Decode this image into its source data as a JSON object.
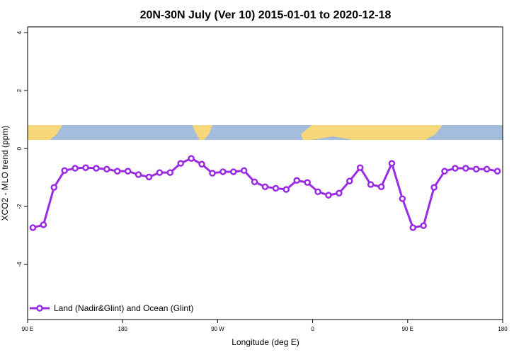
{
  "chart_data": {
    "type": "line",
    "title": "20N-30N July (Ver 10)   2015-01-01 to 2020-12-18",
    "x_label": "Longitude (deg E)",
    "y_label": "XCO2 - MLO trend (ppm)",
    "xlim": [
      90,
      540
    ],
    "xticks": [
      {
        "value": 90,
        "label": "90 E"
      },
      {
        "value": 180,
        "label": "180"
      },
      {
        "value": 270,
        "label": "90 W"
      },
      {
        "value": 360,
        "label": "0"
      },
      {
        "value": 450,
        "label": "90 E"
      },
      {
        "value": 540,
        "label": "180"
      }
    ],
    "ylim": [
      -5.9,
      4.2
    ],
    "yticks": [
      4,
      2,
      0,
      -2,
      -4
    ],
    "legend": "bottom-left",
    "x": [
      95,
      105,
      115,
      125,
      135,
      145,
      155,
      165,
      175,
      185,
      195,
      205,
      215,
      225,
      235,
      245,
      255,
      265,
      275,
      285,
      295,
      305,
      315,
      325,
      335,
      345,
      355,
      365,
      375,
      385,
      395,
      405,
      415,
      425,
      435,
      445,
      455,
      465,
      475,
      485,
      495,
      505,
      515,
      525,
      535
    ],
    "series": [
      {
        "name": "Land (Nadir&Glint) and Ocean (Glint)",
        "color": "#9a2be2",
        "values": [
          -2.73,
          -2.63,
          -1.34,
          -0.76,
          -0.68,
          -0.66,
          -0.68,
          -0.71,
          -0.78,
          -0.78,
          -0.9,
          -0.98,
          -0.83,
          -0.83,
          -0.51,
          -0.34,
          -0.54,
          -0.85,
          -0.8,
          -0.8,
          -0.76,
          -1.15,
          -1.32,
          -1.37,
          -1.41,
          -1.1,
          -1.17,
          -1.49,
          -1.61,
          -1.54,
          -1.12,
          -0.66,
          -1.24,
          -1.32,
          -0.51,
          -1.73,
          -2.73,
          -2.66,
          -1.34,
          -0.78,
          -0.68,
          -0.68,
          -0.71,
          -0.71,
          -0.78
        ]
      }
    ]
  }
}
